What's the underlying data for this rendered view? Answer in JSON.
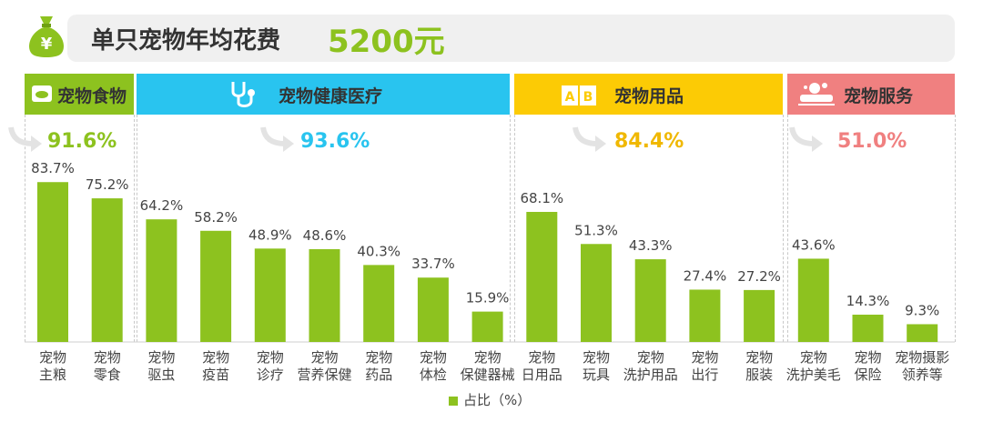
{
  "title": {
    "label": "单只宠物年均花费",
    "value": "5200元",
    "icon": "money-bag-icon"
  },
  "colors": {
    "bar": "#8dc21f",
    "food": "#8dc21f",
    "health": "#29c4ef",
    "supplies": "#fccb05",
    "service": "#f08080"
  },
  "groups": [
    {
      "label": "宠物食物",
      "pct": "91.6%",
      "icon": "pet-food-icon"
    },
    {
      "label": "宠物健康医疗",
      "pct": "93.6%",
      "icon": "stethoscope-icon"
    },
    {
      "label": "宠物用品",
      "pct": "84.4%",
      "icon": "abc-blocks-icon"
    },
    {
      "label": "宠物服务",
      "pct": "51.0%",
      "icon": "pet-bath-icon"
    }
  ],
  "legend": {
    "label": "占比（%）"
  },
  "chart_data": {
    "type": "bar",
    "categories": [
      [
        "宠物",
        "主粮"
      ],
      [
        "宠物",
        "零食"
      ],
      [
        "宠物",
        "驱虫"
      ],
      [
        "宠物",
        "疫苗"
      ],
      [
        "宠物",
        "诊疗"
      ],
      [
        "宠物",
        "营养保健"
      ],
      [
        "宠物",
        "药品"
      ],
      [
        "宠物",
        "体检"
      ],
      [
        "宠物",
        "保健器械"
      ],
      [
        "宠物",
        "日用品"
      ],
      [
        "宠物",
        "玩具"
      ],
      [
        "宠物",
        "洗护用品"
      ],
      [
        "宠物",
        "出行"
      ],
      [
        "宠物",
        "服装"
      ],
      [
        "宠物",
        "洗护美毛"
      ],
      [
        "宠物",
        "保险"
      ],
      [
        "宠物摄影",
        "领养等"
      ]
    ],
    "values": [
      83.7,
      75.2,
      64.2,
      58.2,
      48.9,
      48.6,
      40.3,
      33.7,
      15.9,
      68.1,
      51.3,
      43.3,
      27.4,
      27.2,
      43.6,
      14.3,
      9.3
    ],
    "value_labels": [
      "83.7%",
      "75.2%",
      "64.2%",
      "58.2%",
      "48.9%",
      "48.6%",
      "40.3%",
      "33.7%",
      "15.9%",
      "68.1%",
      "51.3%",
      "43.3%",
      "27.4%",
      "27.2%",
      "43.6%",
      "14.3%",
      "9.3%"
    ],
    "series_name": "占比（%）",
    "ylim": [
      0,
      100
    ],
    "title": "单只宠物年均花费"
  }
}
